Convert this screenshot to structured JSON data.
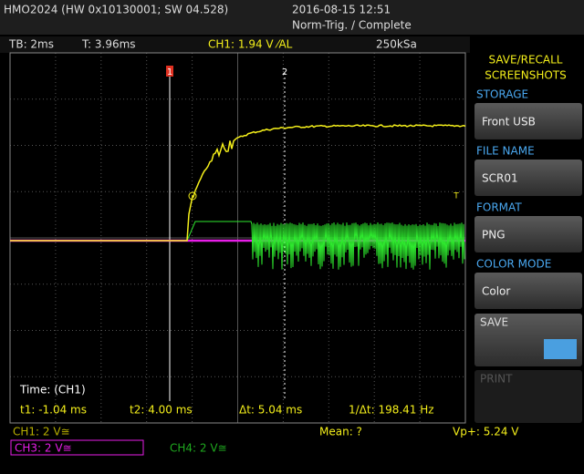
{
  "header": {
    "device": "HMO2024 (HW 0x10130001; SW 04.528)",
    "datetime": "2016-08-15 12:51",
    "trigger_status": "Norm-Trig. / Complete"
  },
  "status_bar": {
    "timebase": "TB: 2ms",
    "trigger_time": "T: 3.96ms",
    "trigger_level": "CH1: 1.94 V ⁄AL",
    "sample_rate": "250kSa"
  },
  "markers": {
    "cursor1": "1",
    "cursor2": "2",
    "trigger": "T"
  },
  "menu": {
    "title_1": "SAVE/RECALL",
    "title_2": "SCREENSHOTS",
    "items": [
      {
        "label": "STORAGE",
        "value": "Front USB"
      },
      {
        "label": "FILE NAME",
        "value": "SCR01"
      },
      {
        "label": "FORMAT",
        "value": "PNG"
      },
      {
        "label": "COLOR MODE",
        "value": "Color"
      }
    ],
    "save": "SAVE",
    "print": "PRINT"
  },
  "cursor_panel": {
    "title": "Time: (CH1)",
    "t1": "t1: -1.04 ms",
    "t2": "t2: 4.00 ms",
    "dt": "Δt: 5.04 ms",
    "inv_dt": "1/Δt: 198.41 Hz"
  },
  "footer": {
    "ch1": "CH1: 2 V≅",
    "mean": "Mean: ?",
    "vp": "Vp+: 5.24 V",
    "ch3": "CH3: 2 V≅",
    "ch4": "CH4: 2 V≅"
  }
}
